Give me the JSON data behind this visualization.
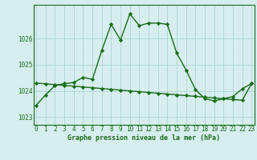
{
  "line1_x": [
    0,
    1,
    2,
    3,
    4,
    5,
    6,
    7,
    8,
    9,
    10,
    11,
    12,
    13,
    14,
    15,
    16,
    17,
    18,
    19,
    20,
    21,
    22,
    23
  ],
  "line1_y": [
    1023.45,
    1023.85,
    1024.2,
    1024.28,
    1024.32,
    1024.52,
    1024.44,
    1025.55,
    1026.55,
    1025.95,
    1026.95,
    1026.5,
    1026.6,
    1026.6,
    1026.55,
    1025.45,
    1024.8,
    1024.05,
    1023.7,
    1023.62,
    1023.7,
    1023.78,
    1024.08,
    1024.28
  ],
  "line2_x": [
    0,
    1,
    2,
    3,
    4,
    5,
    6,
    7,
    8,
    9,
    10,
    11,
    12,
    13,
    14,
    15,
    16,
    17,
    18,
    19,
    20,
    21,
    22,
    23
  ],
  "line2_y": [
    1024.3,
    1024.27,
    1024.24,
    1024.21,
    1024.18,
    1024.15,
    1024.12,
    1024.09,
    1024.06,
    1024.03,
    1024.0,
    1023.97,
    1023.94,
    1023.91,
    1023.88,
    1023.85,
    1023.82,
    1023.79,
    1023.76,
    1023.73,
    1023.7,
    1023.67,
    1023.64,
    1024.28
  ],
  "line_color": "#1a6b1a",
  "bg_color": "#d6eeee",
  "grid_color": "#b0d4d4",
  "yticks": [
    1023,
    1024,
    1025,
    1026
  ],
  "ylim": [
    1022.7,
    1027.3
  ],
  "xlim": [
    -0.3,
    23.3
  ],
  "xlabel": "Graphe pression niveau de la mer (hPa)",
  "xtick_labels": [
    "0",
    "1",
    "2",
    "3",
    "4",
    "5",
    "6",
    "7",
    "8",
    "9",
    "10",
    "11",
    "12",
    "13",
    "14",
    "15",
    "16",
    "17",
    "18",
    "19",
    "20",
    "21",
    "22",
    "23"
  ],
  "marker": "D",
  "marker_size": 2.2,
  "linewidth": 1.0,
  "tick_fontsize": 5.5,
  "label_fontsize": 6.0
}
